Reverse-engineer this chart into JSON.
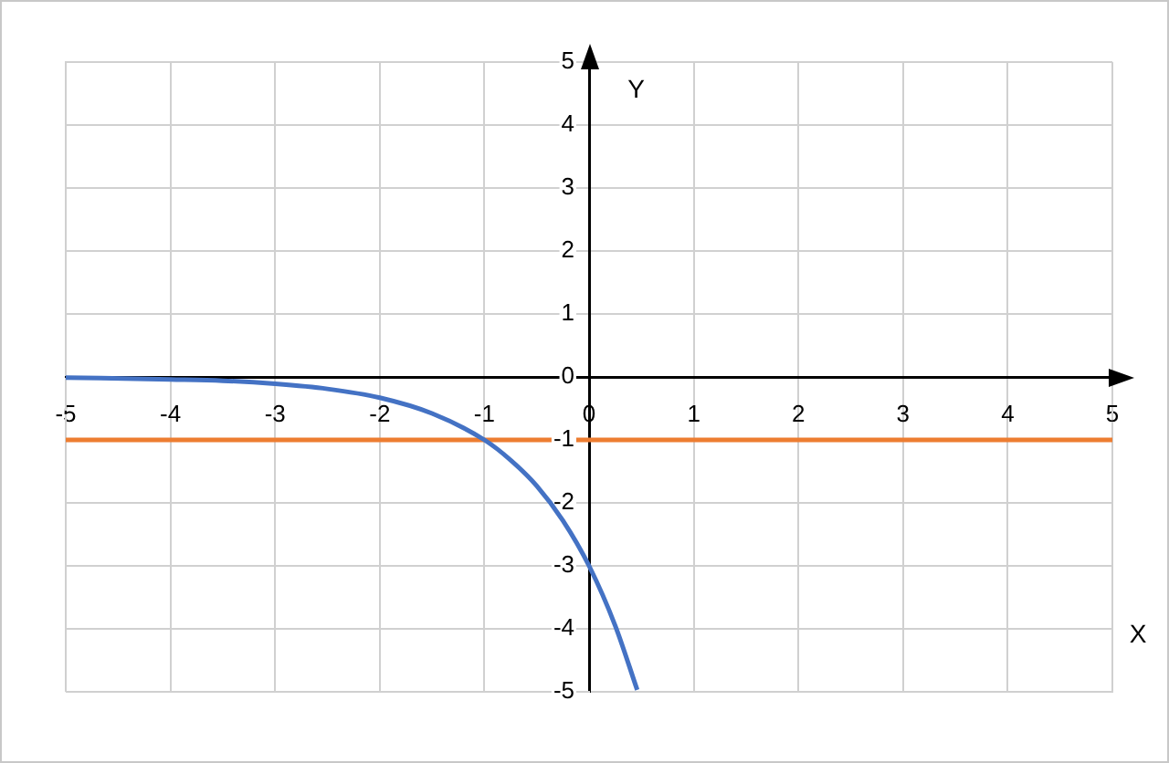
{
  "chart_data": {
    "type": "line",
    "xlabel": "X",
    "ylabel": "Y",
    "xlim": [
      -5,
      5
    ],
    "ylim": [
      -5,
      5
    ],
    "xticks": [
      -5,
      -4,
      -3,
      -2,
      -1,
      0,
      1,
      2,
      3,
      4,
      5
    ],
    "yticks": [
      -5,
      -4,
      -3,
      -2,
      -1,
      0,
      1,
      2,
      3,
      4,
      5
    ],
    "series": [
      {
        "color": "#4472c4",
        "x": [
          -5,
          -4,
          -3.5,
          -3,
          -2.5,
          -2,
          -1.5,
          -1,
          -0.75,
          -0.5,
          -0.25,
          0,
          0.25,
          0.46
        ],
        "values": [
          -0.01,
          -0.04,
          -0.06,
          -0.11,
          -0.19,
          -0.33,
          -0.58,
          -1,
          -1.32,
          -1.73,
          -2.28,
          -3,
          -3.95,
          -4.97
        ]
      },
      {
        "color": "#ed7d31",
        "x": [
          -5,
          5
        ],
        "values": [
          -1,
          -1
        ]
      }
    ],
    "grid": true,
    "marker": "none",
    "line_style": "solid"
  }
}
